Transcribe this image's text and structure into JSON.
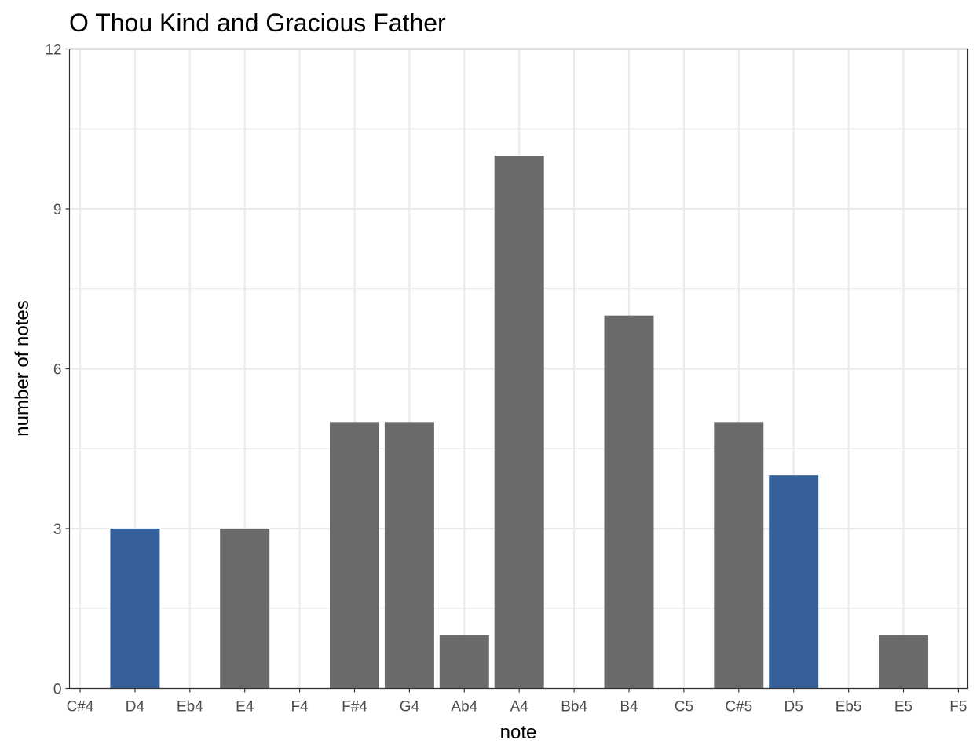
{
  "chart_data": {
    "type": "bar",
    "title": "O Thou Kind and Gracious Father",
    "xlabel": "note",
    "ylabel": "number of notes",
    "categories": [
      "C#4",
      "D4",
      "Eb4",
      "E4",
      "F4",
      "F#4",
      "G4",
      "Ab4",
      "A4",
      "Bb4",
      "B4",
      "C5",
      "C#5",
      "D5",
      "Eb5",
      "E5",
      "F5"
    ],
    "values": [
      0,
      3,
      0,
      3,
      0,
      5,
      5,
      1,
      10,
      0,
      7,
      0,
      5,
      4,
      0,
      1,
      0
    ],
    "highlight": [
      false,
      true,
      false,
      false,
      false,
      false,
      false,
      false,
      false,
      false,
      false,
      false,
      false,
      true,
      false,
      false,
      false
    ],
    "ylim": [
      0,
      12
    ],
    "yticks": [
      0,
      3,
      6,
      9,
      12
    ],
    "grid": true,
    "colors": {
      "bar": "#6b6b6b",
      "highlight": "#36619a",
      "grid": "#ebebeb",
      "panel_border": "#333333"
    }
  }
}
